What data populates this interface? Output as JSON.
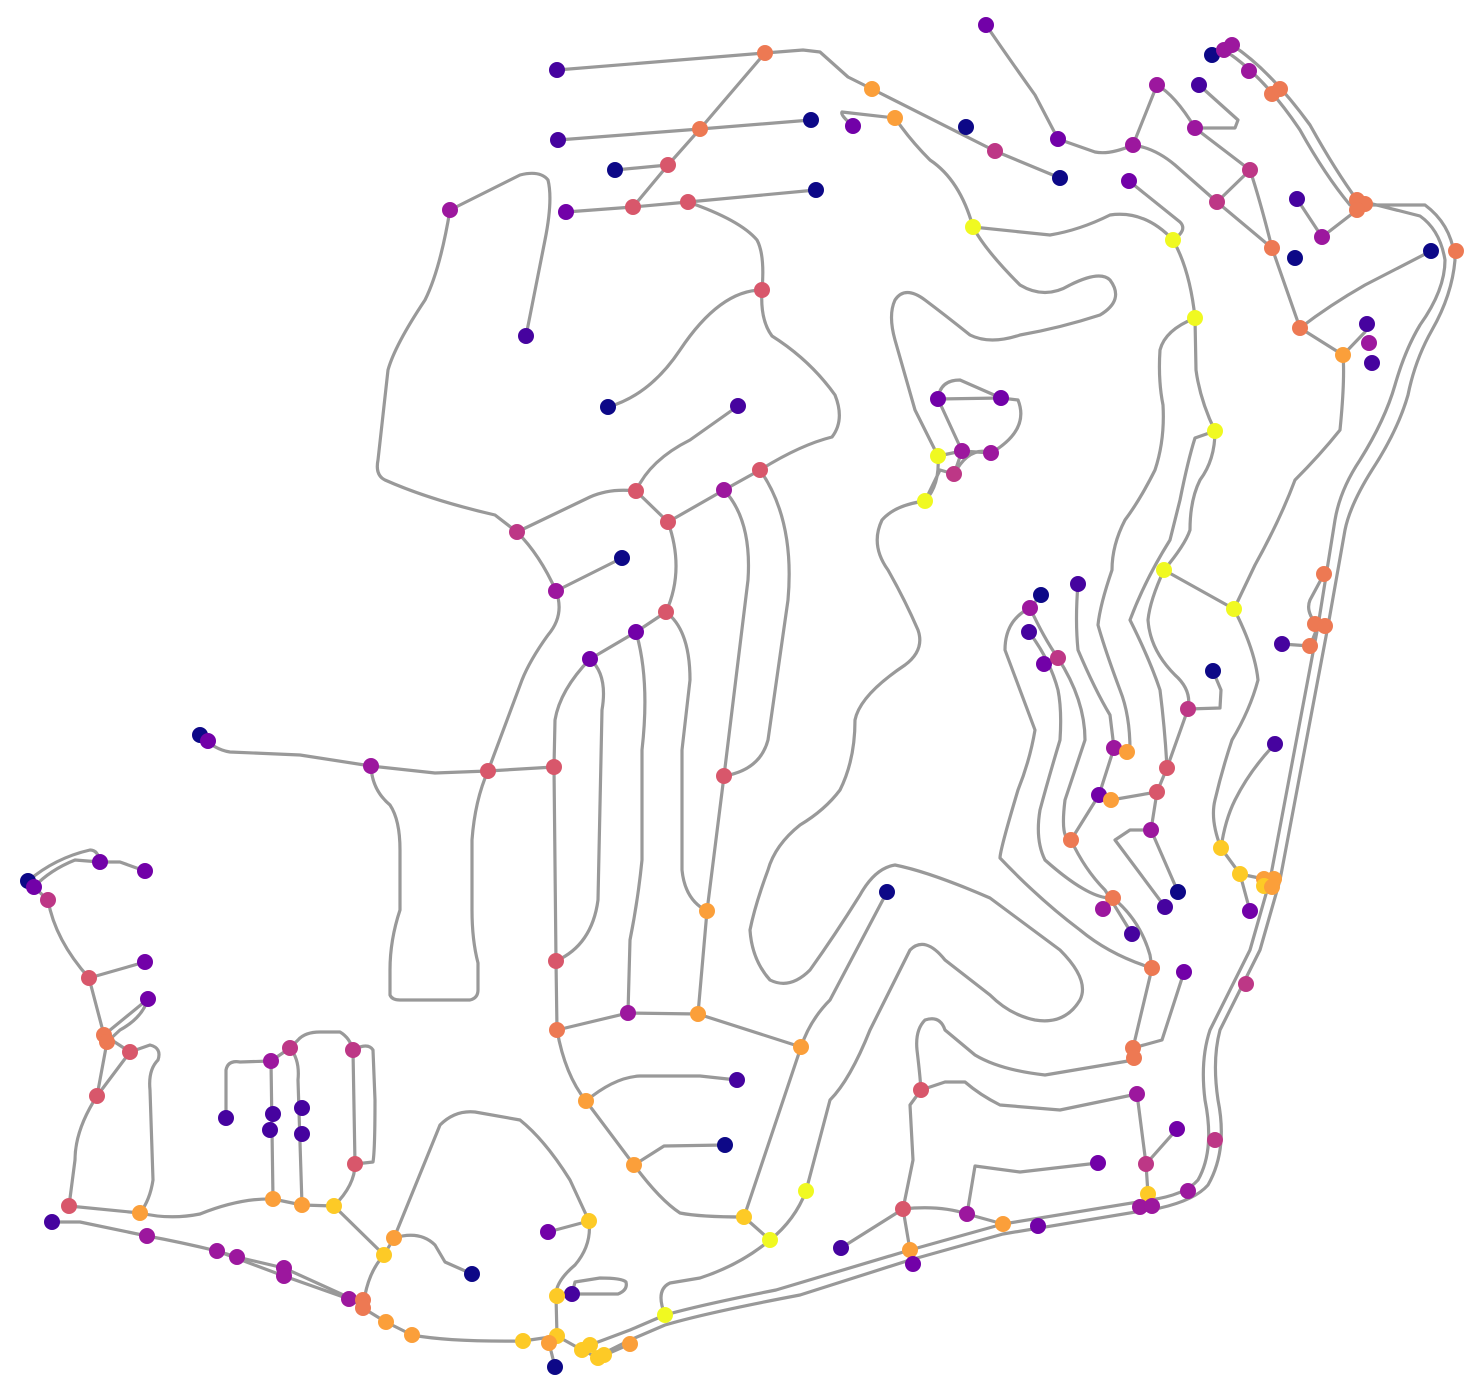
{
  "map": {
    "type": "street-network",
    "edge_color": "#999999",
    "palette": "plasma",
    "palette_stops": [
      "#0d0887",
      "#46039f",
      "#7201a8",
      "#9c179e",
      "#bd3786",
      "#d8576b",
      "#ed7953",
      "#fb9f3a",
      "#fdca26",
      "#f0f921"
    ]
  }
}
